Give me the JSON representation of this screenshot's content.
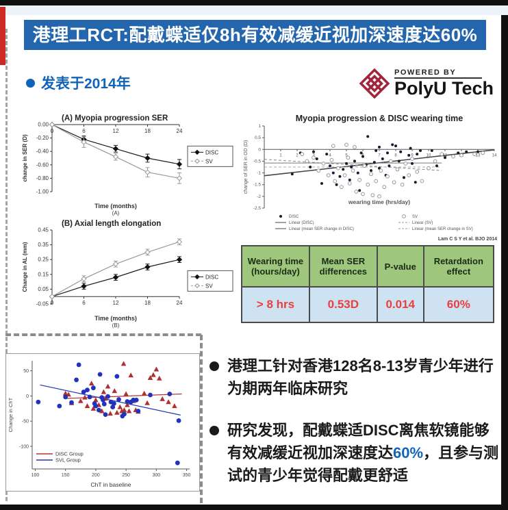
{
  "banner": {
    "title": "港理工RCT:配戴蝶适仅8h有效减缓近视加深速度达60%"
  },
  "published": {
    "text": "发表于2014年"
  },
  "logo": {
    "powered_by": "POWERED BY",
    "brand": "PolyU Tech"
  },
  "table": {
    "headers": [
      "Wearing time (hours/day)",
      "Mean SER differences",
      "P-value",
      "Retardation effect"
    ],
    "row": [
      "> 8 hrs",
      "0.53D",
      "0.014",
      "60%"
    ]
  },
  "bullets": {
    "item1": "港理工针对香港128名8-13岁青少年进行为期两年临床研究",
    "item2_pre": "研究发现，配戴蝶适DISC离焦软镜能够有效减缓近视加深速度达",
    "item2_highlight": "60%",
    "item2_post": "，且参与测试的青少年觉得配戴更舒适"
  },
  "colors": {
    "banner_bg": "#2366ad",
    "published_text": "#1064b8",
    "logo_red": "#a1253c",
    "table_header_bg": "#9fc67d",
    "table_row_bg": "#cfe2f2",
    "table_row_text": "#e8403c",
    "highlight_blue": "#1064b8",
    "disc_red": "#b03030",
    "svl_blue": "#2233bb"
  },
  "chart_data": [
    {
      "id": "chartA",
      "type": "line",
      "title": "(A) Myopia progression SER",
      "xlabel": "Time (months)",
      "sublabel": "(A)",
      "ylabel": "change in SER (D)",
      "x": [
        0,
        6,
        12,
        18,
        24
      ],
      "ylim": [
        -1.0,
        0.0
      ],
      "yticks": [
        0.0,
        -0.2,
        -0.4,
        -0.6,
        -0.8,
        -1.0
      ],
      "series": [
        {
          "name": "DISC",
          "marker": "filled",
          "values": [
            0,
            -0.22,
            -0.36,
            -0.5,
            -0.59
          ],
          "err": [
            0,
            0.05,
            0.05,
            0.06,
            0.07
          ]
        },
        {
          "name": "SV",
          "marker": "open",
          "values": [
            0,
            -0.26,
            -0.48,
            -0.71,
            -0.8
          ],
          "err": [
            0,
            0.08,
            0.05,
            0.07,
            0.08
          ]
        }
      ],
      "legend": [
        "DISC",
        "SV"
      ]
    },
    {
      "id": "chartB",
      "type": "line",
      "title": "(B) Axial length elongation",
      "xlabel": "Time (months)",
      "sublabel": "(B)",
      "ylabel": "Change in AL (mm)",
      "x": [
        0,
        6,
        12,
        18,
        24
      ],
      "ylim": [
        -0.05,
        0.45
      ],
      "yticks": [
        0.45,
        0.35,
        0.25,
        0.15,
        0.05,
        -0.05
      ],
      "series": [
        {
          "name": "DISC",
          "marker": "filled",
          "values": [
            0,
            0.07,
            0.13,
            0.2,
            0.25
          ],
          "err": [
            0,
            0.02,
            0.02,
            0.02,
            0.02
          ]
        },
        {
          "name": "SV",
          "marker": "open",
          "values": [
            0,
            0.12,
            0.22,
            0.3,
            0.37
          ],
          "err": [
            0,
            0.02,
            0.02,
            0.02,
            0.02
          ]
        }
      ],
      "legend": [
        "DISC",
        "SV"
      ]
    },
    {
      "id": "scatterTime",
      "type": "scatter",
      "title": "Myopia progression & DISC wearing time",
      "xlabel": "wearing time (hrs/day)",
      "ylabel": "change of SER in OD (D)",
      "xlim": [
        0,
        14
      ],
      "ylim": [
        -2.5,
        1
      ],
      "xticks": [
        1,
        2,
        3,
        4,
        5,
        6,
        7,
        8,
        9,
        10,
        11,
        12,
        13,
        14
      ],
      "yticks": [
        1,
        0.5,
        0,
        -0.5,
        -1,
        -1.5,
        -2,
        -2.5
      ],
      "citation": "Lam C S Y et al. BJO 2014",
      "legend": [
        "DISC",
        "SV",
        "Linear (DISC)",
        "Linear (SV)",
        "Linear (mean SER change in DISC)",
        "Linear (mean SER change in SV)"
      ],
      "trend_lines": [
        {
          "x1": 0,
          "y1": -1.12,
          "x2": 14,
          "y2": -0.02,
          "dash": false,
          "color": "#444",
          "w": 1.6
        },
        {
          "x1": 0,
          "y1": -0.42,
          "x2": 10.8,
          "y2": -0.9,
          "dash": true,
          "color": "#888",
          "w": 1
        },
        {
          "x1": 0,
          "y1": -0.58,
          "x2": 10.8,
          "y2": -0.58,
          "dash": false,
          "color": "#777",
          "w": 1
        },
        {
          "x1": 0,
          "y1": -0.75,
          "x2": 10.8,
          "y2": -0.75,
          "dash": true,
          "color": "#aaa",
          "w": 1
        }
      ],
      "disc_points": [
        [
          1.7,
          -1.05
        ],
        [
          2.2,
          -0.15
        ],
        [
          2.8,
          -0.75
        ],
        [
          3.0,
          -0.1
        ],
        [
          3.2,
          -0.4
        ],
        [
          3.5,
          -1.45
        ],
        [
          3.8,
          -0.2
        ],
        [
          4.0,
          -0.7
        ],
        [
          4.2,
          -1.0
        ],
        [
          4.4,
          -1.5
        ],
        [
          4.6,
          -1.15
        ],
        [
          4.8,
          -0.85
        ],
        [
          5.0,
          -0.6
        ],
        [
          5.2,
          -1.3
        ],
        [
          5.3,
          -0.75
        ],
        [
          5.5,
          -0.5
        ],
        [
          5.7,
          -1.0
        ],
        [
          5.8,
          -1.75
        ],
        [
          5.9,
          -0.15
        ],
        [
          6.0,
          -0.3
        ],
        [
          6.2,
          -0.65
        ],
        [
          6.3,
          0.55
        ],
        [
          6.5,
          -0.9
        ],
        [
          6.7,
          -0.55
        ],
        [
          6.8,
          -0.05
        ],
        [
          7.0,
          -0.8
        ],
        [
          7.0,
          0.1
        ],
        [
          7.2,
          -0.4
        ],
        [
          7.4,
          -1.1
        ],
        [
          7.5,
          -0.15
        ],
        [
          7.6,
          -0.7
        ],
        [
          7.8,
          0.2
        ],
        [
          8.0,
          0.15
        ],
        [
          8.2,
          -0.5
        ],
        [
          8.3,
          -0.1
        ],
        [
          8.5,
          -1.2
        ],
        [
          8.8,
          -0.25
        ],
        [
          8.9,
          0.05
        ],
        [
          9.0,
          -0.6
        ],
        [
          9.2,
          -1.4
        ],
        [
          9.3,
          -0.2
        ],
        [
          9.5,
          -0.05
        ],
        [
          10.2,
          -0.05
        ],
        [
          10.5,
          -0.7
        ],
        [
          11.0,
          -0.35
        ],
        [
          11.8,
          -0.15
        ],
        [
          12.3,
          -0.1
        ],
        [
          13.0,
          -0.1
        ]
      ],
      "sv_points": [
        [
          2.3,
          -0.2
        ],
        [
          2.6,
          -0.5
        ],
        [
          3.0,
          -0.35
        ],
        [
          3.3,
          -0.9
        ],
        [
          3.6,
          -0.6
        ],
        [
          3.9,
          -1.1
        ],
        [
          4.1,
          -0.45
        ],
        [
          4.2,
          0.15
        ],
        [
          4.3,
          -1.35
        ],
        [
          4.5,
          -0.8
        ],
        [
          4.7,
          -1.6
        ],
        [
          4.9,
          -1.1
        ],
        [
          5.0,
          0.2
        ],
        [
          5.1,
          -0.35
        ],
        [
          5.2,
          -1.45
        ],
        [
          5.4,
          -0.9
        ],
        [
          5.5,
          0.1
        ],
        [
          5.6,
          -1.8
        ],
        [
          5.8,
          -1.3
        ],
        [
          6.0,
          -1.9
        ],
        [
          6.1,
          -0.7
        ],
        [
          6.3,
          -1.5
        ],
        [
          6.5,
          -1.05
        ],
        [
          6.6,
          -1.95
        ],
        [
          6.8,
          -1.35
        ],
        [
          7.0,
          -2.0
        ],
        [
          7.1,
          -0.9
        ],
        [
          7.3,
          -1.6
        ],
        [
          7.5,
          -1.15
        ],
        [
          7.7,
          -0.5
        ],
        [
          7.9,
          -1.4
        ],
        [
          8.1,
          -0.85
        ],
        [
          8.4,
          -1.5
        ],
        [
          8.6,
          -0.6
        ],
        [
          8.8,
          -1.1
        ],
        [
          9.0,
          -0.4
        ],
        [
          9.3,
          -0.95
        ],
        [
          9.6,
          -1.35
        ],
        [
          10.0,
          -0.8
        ],
        [
          10.4,
          -0.5
        ],
        [
          10.8,
          -0.2
        ],
        [
          11.5,
          -0.3
        ],
        [
          12.0,
          -0.25
        ],
        [
          12.8,
          -0.2
        ],
        [
          13.3,
          -0.15
        ]
      ]
    },
    {
      "id": "scatterChT",
      "type": "scatter",
      "xlabel": "ChT in baseline",
      "ylabel": "Change in ChT",
      "xlim": [
        95,
        355
      ],
      "ylim": [
        -145,
        70
      ],
      "xticks": [
        100,
        150,
        200,
        250,
        300,
        350
      ],
      "yticks": [
        50,
        0,
        -50,
        -100
      ],
      "legend": [
        {
          "label": "DISC Group",
          "color": "#b03030"
        },
        {
          "label": "SVL Group",
          "color": "#2233bb"
        }
      ],
      "trend_lines": [
        {
          "x1": 148,
          "y1": -5,
          "x2": 342,
          "y2": 4,
          "color": "#b03030"
        },
        {
          "x1": 108,
          "y1": 22,
          "x2": 340,
          "y2": -38,
          "color": "#2233bb"
        }
      ],
      "disc_points": [
        [
          150,
          5
        ],
        [
          155,
          3
        ],
        [
          160,
          -14
        ],
        [
          175,
          -10
        ],
        [
          182,
          -3
        ],
        [
          186,
          -20
        ],
        [
          193,
          25
        ],
        [
          196,
          -25
        ],
        [
          200,
          -8
        ],
        [
          205,
          -18
        ],
        [
          210,
          -30
        ],
        [
          213,
          8
        ],
        [
          216,
          -5
        ],
        [
          220,
          19
        ],
        [
          224,
          -35
        ],
        [
          228,
          -20
        ],
        [
          231,
          10
        ],
        [
          235,
          -33
        ],
        [
          240,
          -22
        ],
        [
          243,
          -30
        ],
        [
          246,
          64
        ],
        [
          247,
          -28
        ],
        [
          250,
          4
        ],
        [
          252,
          -18
        ],
        [
          255,
          -30
        ],
        [
          258,
          41
        ],
        [
          262,
          -10
        ],
        [
          266,
          -28
        ],
        [
          270,
          -31
        ],
        [
          280,
          5
        ],
        [
          285,
          -14
        ],
        [
          290,
          36
        ],
        [
          295,
          42
        ],
        [
          300,
          53
        ],
        [
          305,
          35
        ],
        [
          310,
          -6
        ],
        [
          320,
          -12
        ],
        [
          330,
          -20
        ]
      ],
      "svl_points": [
        [
          105,
          -12
        ],
        [
          140,
          -20
        ],
        [
          150,
          -2
        ],
        [
          160,
          -13
        ],
        [
          168,
          32
        ],
        [
          172,
          62
        ],
        [
          180,
          8
        ],
        [
          186,
          12
        ],
        [
          190,
          -2
        ],
        [
          196,
          16
        ],
        [
          198,
          -15
        ],
        [
          200,
          -20
        ],
        [
          205,
          -28
        ],
        [
          207,
          43
        ],
        [
          210,
          -3
        ],
        [
          212,
          -8
        ],
        [
          214,
          -16
        ],
        [
          216,
          -37
        ],
        [
          220,
          -1
        ],
        [
          225,
          -12
        ],
        [
          228,
          -22
        ],
        [
          230,
          -15
        ],
        [
          235,
          39
        ],
        [
          238,
          -7
        ],
        [
          244,
          -40
        ],
        [
          247,
          -36
        ],
        [
          252,
          -11
        ],
        [
          258,
          -12
        ],
        [
          262,
          -8
        ],
        [
          267,
          -8
        ],
        [
          270,
          -30
        ],
        [
          290,
          2
        ],
        [
          322,
          4
        ],
        [
          337,
          -49
        ],
        [
          335,
          -133
        ]
      ]
    }
  ]
}
